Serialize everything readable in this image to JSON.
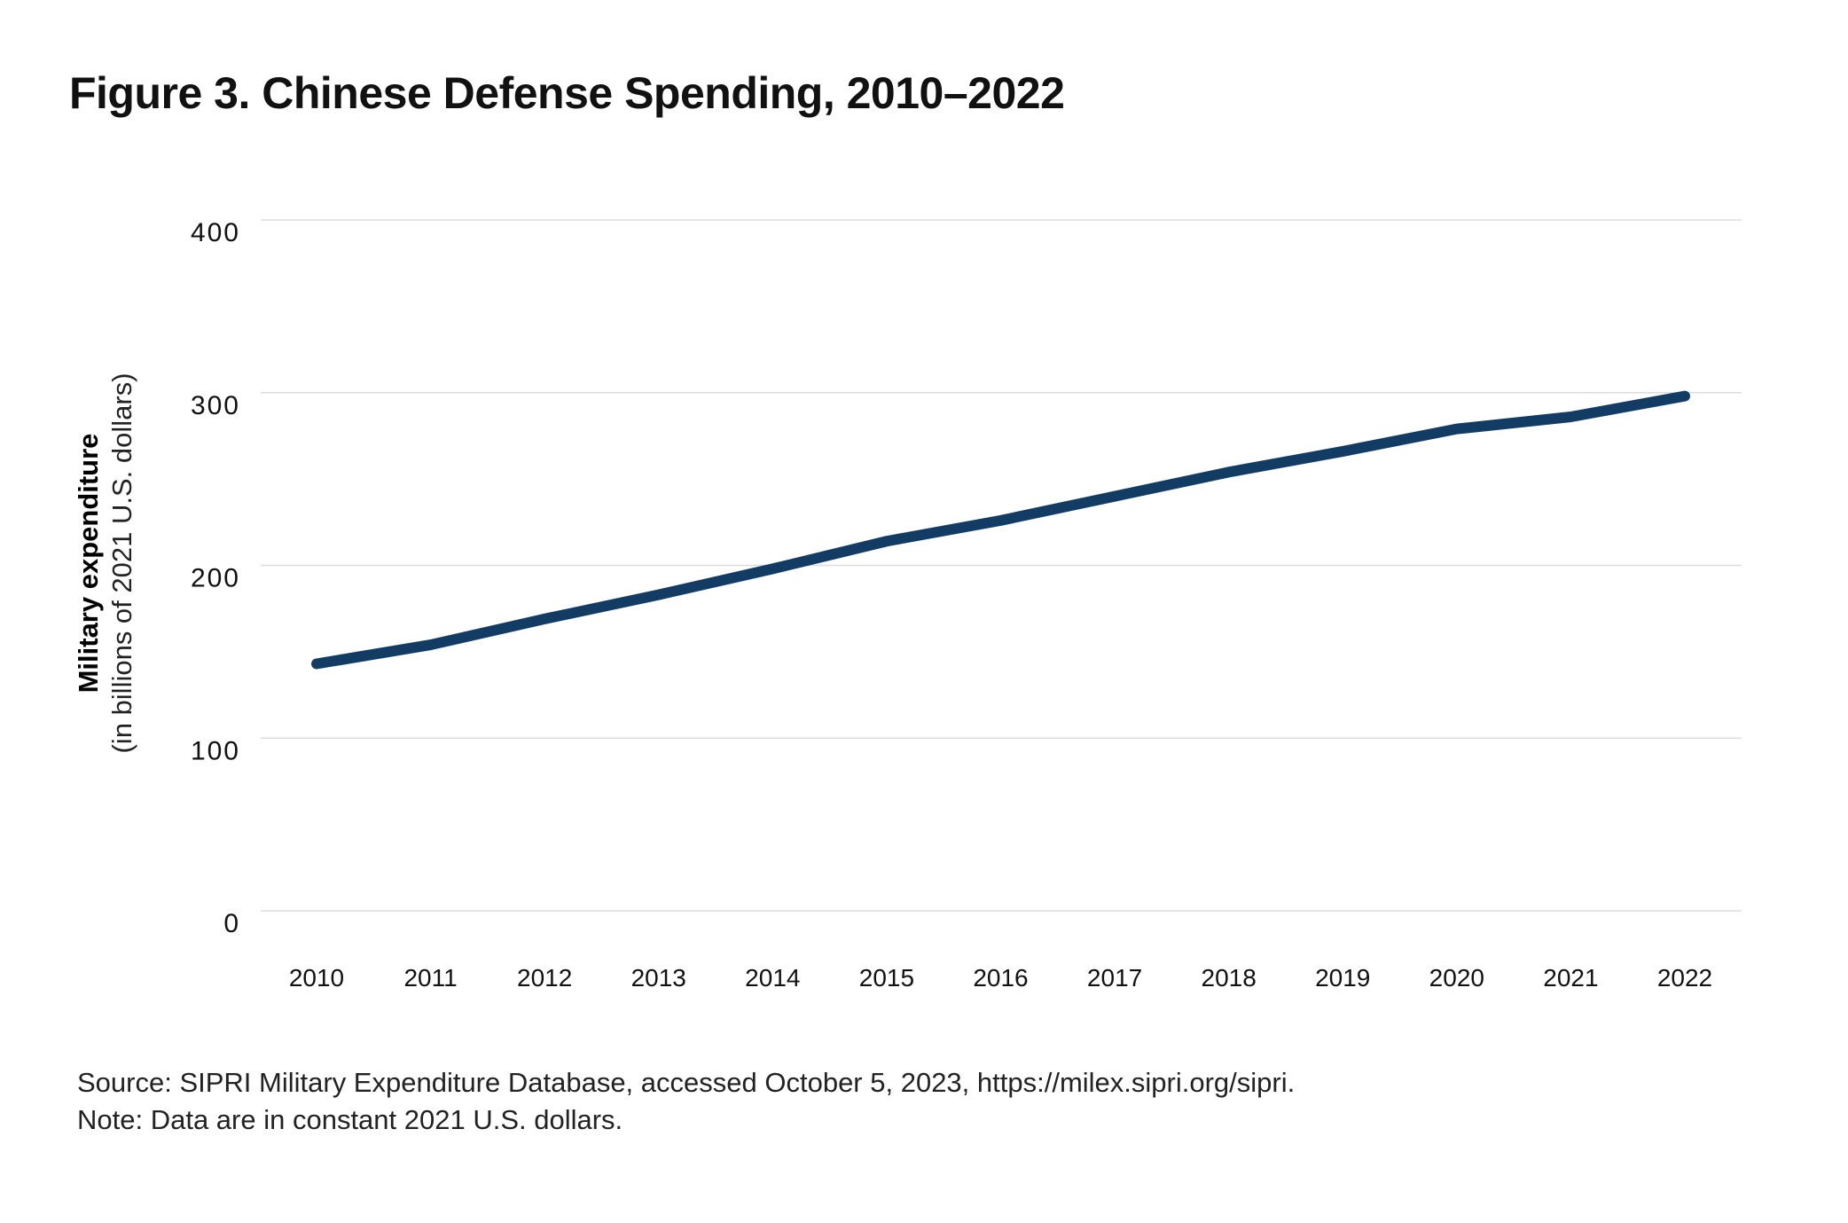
{
  "title": "Figure 3. Chinese Defense Spending, 2010–2022",
  "source": "Source: SIPRI Military Expenditure Database, accessed October 5, 2023, https://milex.sipri.org/sipri.",
  "note": "Note: Data are in constant 2021 U.S. dollars.",
  "chart_data": {
    "type": "line",
    "title": "Figure 3. Chinese Defense Spending, 2010–2022",
    "ylabel": "Military expenditure",
    "ylabel_sub": "(in billions of 2021 U.S. dollars)",
    "xlabel": "",
    "x": [
      "2010",
      "2011",
      "2012",
      "2013",
      "2014",
      "2015",
      "2016",
      "2017",
      "2018",
      "2019",
      "2020",
      "2021",
      "2022"
    ],
    "series": [
      {
        "values": [
          143,
          154,
          169,
          183,
          198,
          214,
          226,
          240,
          254,
          266,
          279,
          286,
          298
        ]
      }
    ],
    "ylim": [
      0,
      400
    ],
    "yticks": [
      "0",
      "100",
      "200",
      "300",
      "400"
    ],
    "grid": true,
    "legend": "none",
    "line_color": "#133c64",
    "grid_color": "#dddddd"
  }
}
